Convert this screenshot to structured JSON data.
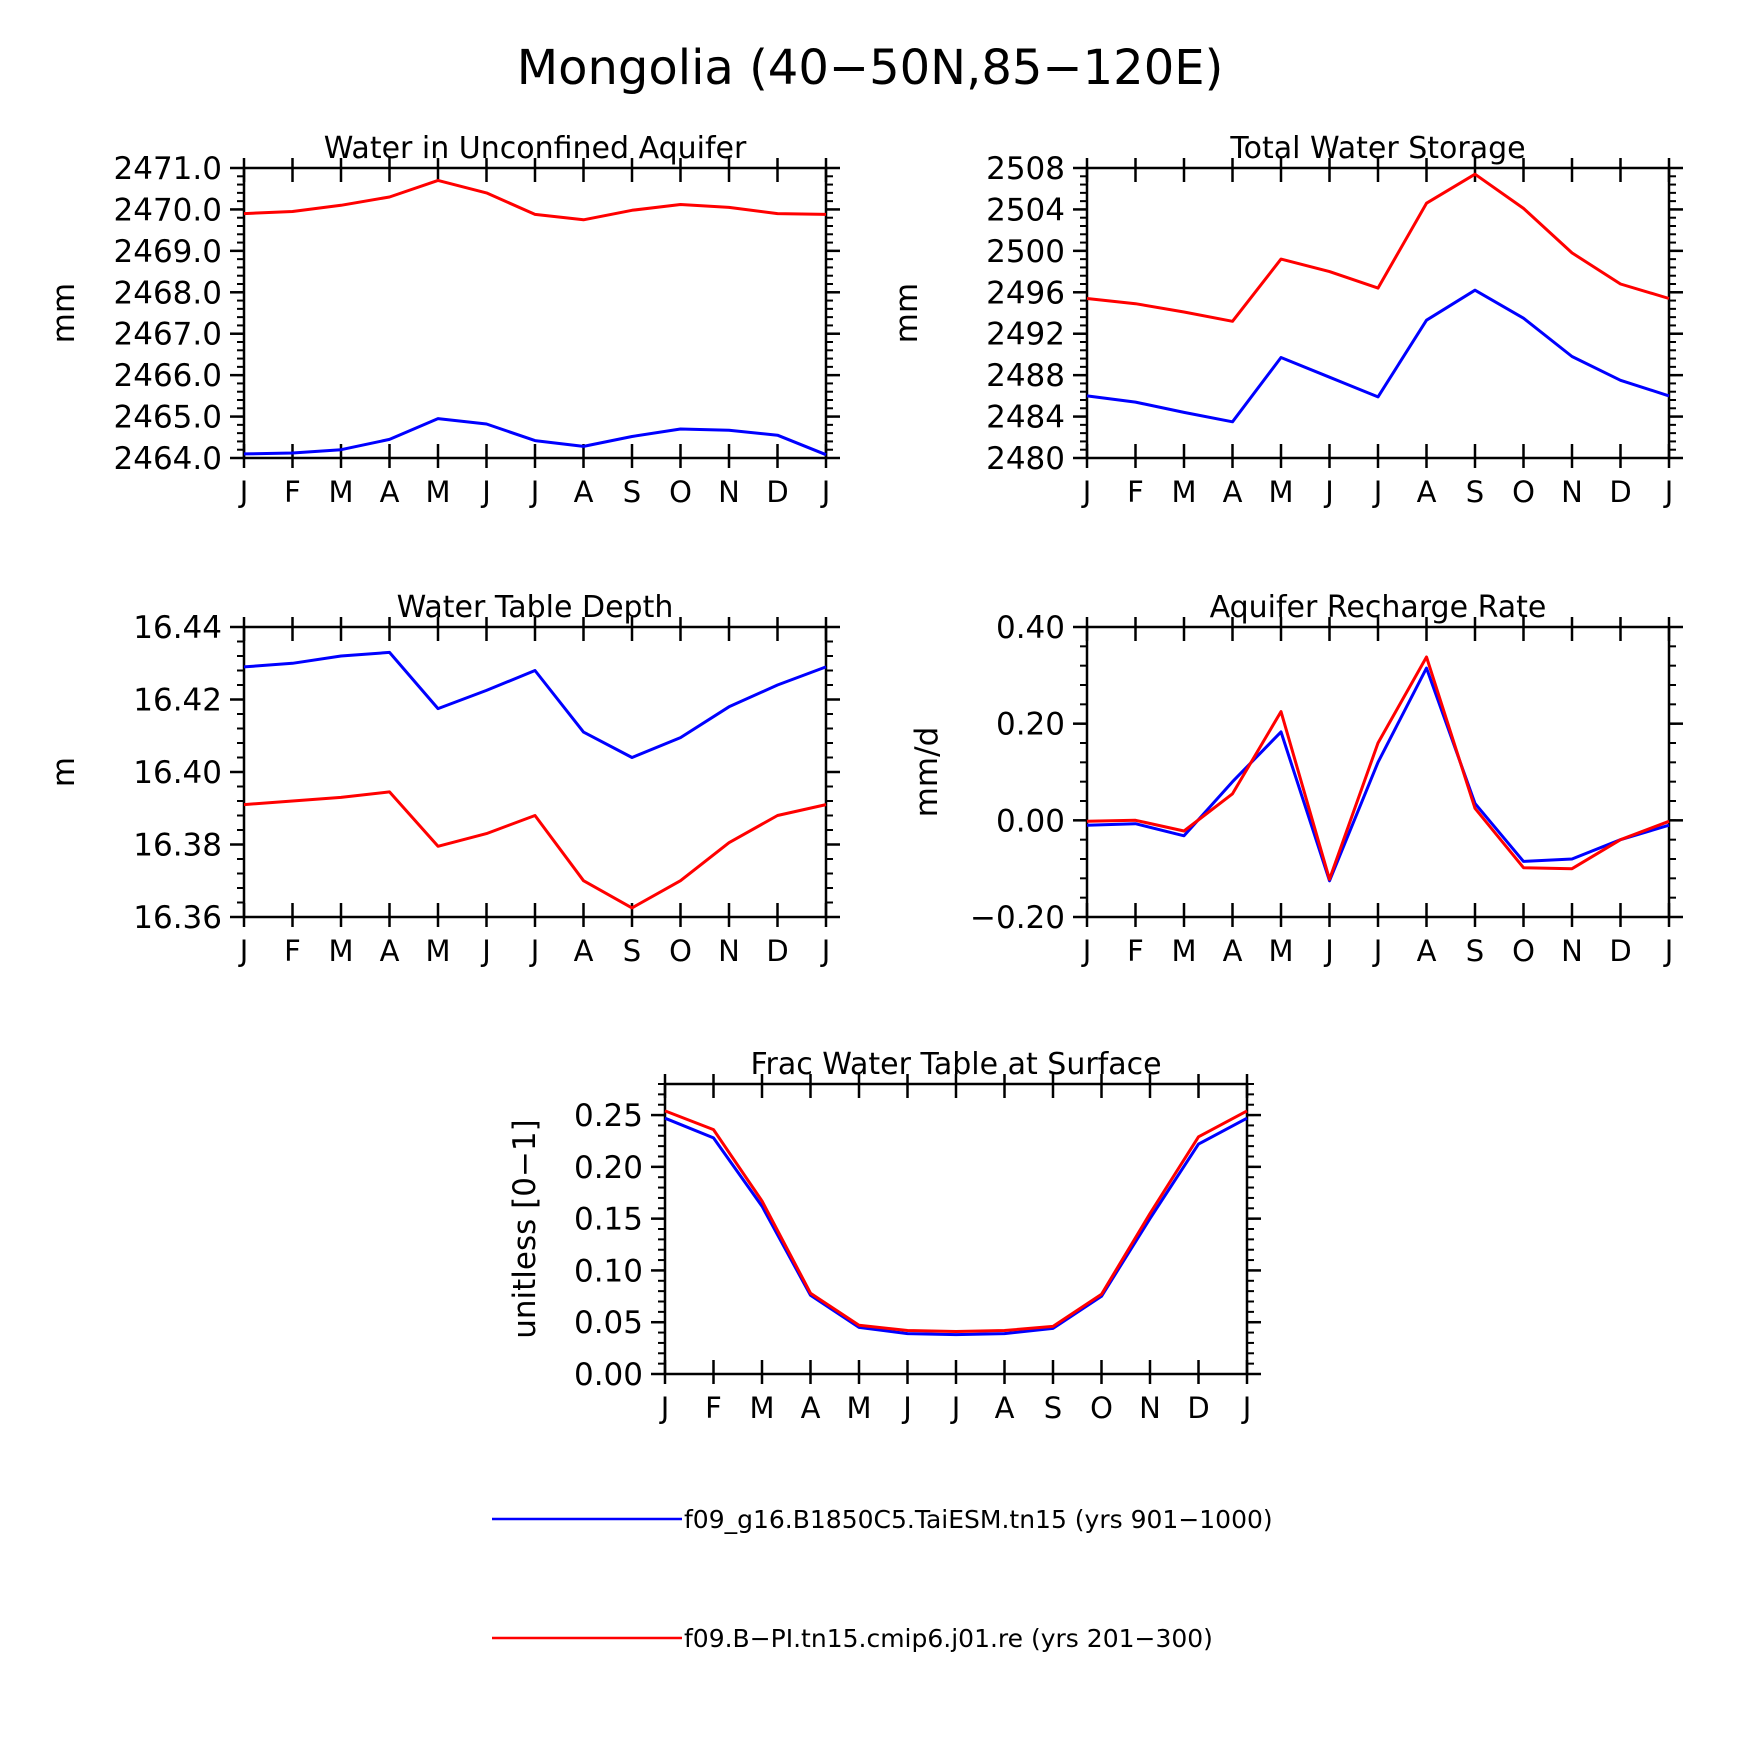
{
  "figure_title": "Mongolia (40−50N,85−120E)",
  "colors": {
    "series_1": "#0000ff",
    "series_2": "#ff0000",
    "axis": "#000000"
  },
  "legend": [
    {
      "label": "f09_g16.B1850C5.TaiESM.tn15 (yrs 901−1000)",
      "color": "#0000ff"
    },
    {
      "label": "f09.B−PI.tn15.cmip6.j01.re (yrs 201−300)",
      "color": "#ff0000"
    }
  ],
  "chart_data": [
    {
      "type": "line",
      "title": "Water in Unconfined Aquifer",
      "ylabel": "mm",
      "xlabel": "",
      "categories": [
        "J",
        "F",
        "M",
        "A",
        "M",
        "J",
        "J",
        "A",
        "S",
        "O",
        "N",
        "D",
        "J"
      ],
      "ylim": [
        2464.0,
        2471.0
      ],
      "yticks": [
        "2464.0",
        "2465.0",
        "2466.0",
        "2467.0",
        "2468.0",
        "2469.0",
        "2470.0",
        "2471.0"
      ],
      "ytick_values": [
        2464,
        2465,
        2466,
        2467,
        2468,
        2469,
        2470,
        2471
      ],
      "grid": false,
      "series": [
        {
          "color": "#0000ff",
          "values": [
            2464.1,
            2464.12,
            2464.2,
            2464.45,
            2464.95,
            2464.82,
            2464.42,
            2464.28,
            2464.52,
            2464.7,
            2464.67,
            2464.55,
            2464.08
          ]
        },
        {
          "color": "#ff0000",
          "values": [
            2469.9,
            2469.95,
            2470.1,
            2470.3,
            2470.7,
            2470.4,
            2469.88,
            2469.75,
            2469.98,
            2470.12,
            2470.05,
            2469.9,
            2469.88
          ]
        }
      ]
    },
    {
      "type": "line",
      "title": "Total Water Storage",
      "ylabel": "mm",
      "xlabel": "",
      "categories": [
        "J",
        "F",
        "M",
        "A",
        "M",
        "J",
        "J",
        "A",
        "S",
        "O",
        "N",
        "D",
        "J"
      ],
      "ylim": [
        2480,
        2508
      ],
      "yticks": [
        "2480",
        "2484",
        "2488",
        "2492",
        "2496",
        "2500",
        "2504",
        "2508"
      ],
      "ytick_values": [
        2480,
        2484,
        2488,
        2492,
        2496,
        2500,
        2504,
        2508
      ],
      "grid": false,
      "series": [
        {
          "color": "#0000ff",
          "values": [
            2486.0,
            2485.4,
            2484.4,
            2483.5,
            2489.7,
            2487.8,
            2485.9,
            2493.3,
            2496.2,
            2493.5,
            2489.8,
            2487.5,
            2486.0
          ]
        },
        {
          "color": "#ff0000",
          "values": [
            2495.4,
            2494.9,
            2494.1,
            2493.2,
            2499.2,
            2498.0,
            2496.4,
            2504.6,
            2507.4,
            2504.1,
            2499.8,
            2496.8,
            2495.4
          ]
        }
      ]
    },
    {
      "type": "line",
      "title": "Water Table Depth",
      "ylabel": "m",
      "xlabel": "",
      "categories": [
        "J",
        "F",
        "M",
        "A",
        "M",
        "J",
        "J",
        "A",
        "S",
        "O",
        "N",
        "D",
        "J"
      ],
      "ylim": [
        16.36,
        16.44
      ],
      "yticks": [
        "16.36",
        "16.38",
        "16.40",
        "16.42",
        "16.44"
      ],
      "ytick_values": [
        16.36,
        16.38,
        16.4,
        16.42,
        16.44
      ],
      "grid": false,
      "series": [
        {
          "color": "#0000ff",
          "values": [
            16.429,
            16.43,
            16.432,
            16.433,
            16.4175,
            16.4225,
            16.428,
            16.411,
            16.404,
            16.4095,
            16.418,
            16.424,
            16.429
          ]
        },
        {
          "color": "#ff0000",
          "values": [
            16.391,
            16.392,
            16.393,
            16.3945,
            16.3795,
            16.383,
            16.388,
            16.37,
            16.3625,
            16.37,
            16.3805,
            16.388,
            16.391
          ]
        }
      ]
    },
    {
      "type": "line",
      "title": "Aquifer Recharge Rate",
      "ylabel": "mm/d",
      "xlabel": "",
      "categories": [
        "J",
        "F",
        "M",
        "A",
        "M",
        "J",
        "J",
        "A",
        "S",
        "O",
        "N",
        "D",
        "J"
      ],
      "ylim": [
        -0.2,
        0.4
      ],
      "yticks": [
        "−0.20",
        "0.00",
        "0.20",
        "0.40"
      ],
      "ytick_values": [
        -0.2,
        0.0,
        0.2,
        0.4
      ],
      "grid": false,
      "series": [
        {
          "color": "#0000ff",
          "values": [
            -0.01,
            -0.007,
            -0.032,
            0.08,
            0.183,
            -0.125,
            0.12,
            0.315,
            0.035,
            -0.085,
            -0.08,
            -0.04,
            -0.01
          ]
        },
        {
          "color": "#ff0000",
          "values": [
            -0.002,
            0.0,
            -0.022,
            0.055,
            0.225,
            -0.122,
            0.16,
            0.338,
            0.025,
            -0.098,
            -0.1,
            -0.04,
            -0.002
          ]
        }
      ]
    },
    {
      "type": "line",
      "title": "Frac Water Table at Surface",
      "ylabel": "unitless [0−1]",
      "xlabel": "",
      "categories": [
        "J",
        "F",
        "M",
        "A",
        "M",
        "J",
        "J",
        "A",
        "S",
        "O",
        "N",
        "D",
        "J"
      ],
      "ylim": [
        0.0,
        0.28
      ],
      "yticks": [
        "0.00",
        "0.05",
        "0.10",
        "0.15",
        "0.20",
        "0.25"
      ],
      "ytick_values": [
        0.0,
        0.05,
        0.1,
        0.15,
        0.2,
        0.25
      ],
      "grid": false,
      "series": [
        {
          "color": "#0000ff",
          "values": [
            0.247,
            0.228,
            0.162,
            0.076,
            0.045,
            0.039,
            0.038,
            0.039,
            0.044,
            0.075,
            0.15,
            0.222,
            0.247
          ]
        },
        {
          "color": "#ff0000",
          "values": [
            0.254,
            0.236,
            0.167,
            0.078,
            0.047,
            0.042,
            0.041,
            0.042,
            0.046,
            0.077,
            0.155,
            0.229,
            0.254
          ]
        }
      ]
    }
  ]
}
